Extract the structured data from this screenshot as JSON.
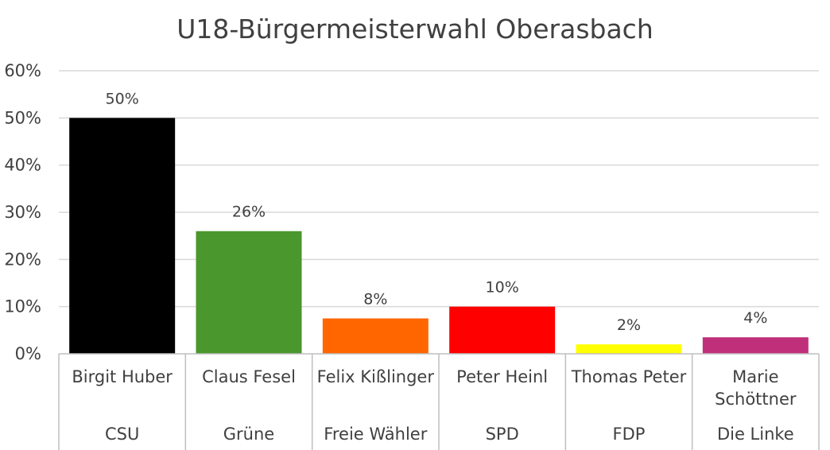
{
  "chart_data": {
    "type": "bar",
    "title": "U18-Bürgermeisterwahl Oberasbach",
    "xlabel": "",
    "ylabel": "",
    "ylim": [
      0,
      60
    ],
    "yticks": [
      "0%",
      "10%",
      "20%",
      "30%",
      "40%",
      "50%",
      "60%"
    ],
    "grid": true,
    "categories": [
      {
        "name": "Birgit Huber",
        "party": "CSU",
        "value": 50,
        "label": "50%",
        "color": "#000000"
      },
      {
        "name": "Claus Fesel",
        "party": "Grüne",
        "value": 26,
        "label": "26%",
        "color": "#4a972e"
      },
      {
        "name": "Felix Kißlinger",
        "party": "Freie Wähler",
        "value": 7.5,
        "label": "8%",
        "color": "#ff6600"
      },
      {
        "name": "Peter Heinl",
        "party": "SPD",
        "value": 10,
        "label": "10%",
        "color": "#ff0000"
      },
      {
        "name": "Thomas Peter",
        "party": "FDP",
        "value": 2,
        "label": "2%",
        "color": "#ffff00"
      },
      {
        "name": "Marie Schöttner",
        "party": "Die Linke",
        "value": 3.5,
        "label": "4%",
        "color": "#c0307a"
      }
    ]
  }
}
